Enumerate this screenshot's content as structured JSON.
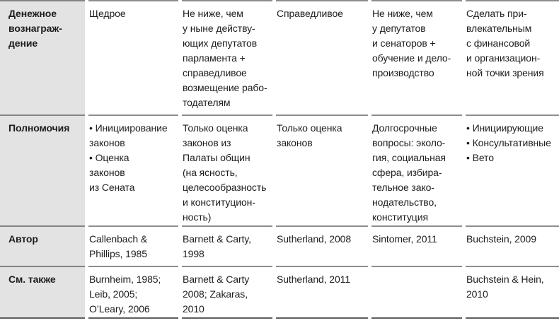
{
  "table": {
    "colors": {
      "header_column_bg": "#e3e3e3",
      "separator_line": "#8d8d8d",
      "bottom_line": "#5f5f5f",
      "text": "#1d1d1d"
    },
    "rows": [
      {
        "header": "Денежное\nвознаграж-\nдение",
        "cells": [
          "Щедрое",
          "Не ниже, чем\nу ныне действу-\nющих депутатов\nпарламента +\nсправедливое\nвозмещение рабо-\nтодателям",
          "Справедливое",
          "Не ниже, чем\nу депутатов\nи сенаторов +\nобучение и дело-\nпроизводство",
          "Сделать при-\nвлекательным\nс финансовой\nи организацион-\nной точки зрения"
        ]
      },
      {
        "header": "Полномочия",
        "cells": [
          "• Инициирование\nзаконов\n• Оценка\nзаконов\nиз Сената",
          "Только оценка\nзаконов из\nПалаты общин\n(на ясность,\nцелесообразность\nи конституцион-\nность)",
          "Только оценка\nзаконов",
          "Долгосрочные\nвопросы: эколо-\nгия, социальная\nсфера, избира-\nтельное зако-\nнодательство,\nконституция",
          "• Инициирующие\n• Консультативные\n• Вето"
        ]
      },
      {
        "header": "Автор",
        "cells": [
          "Callenbach &\nPhillips, 1985",
          "Barnett & Carty,\n1998",
          "Sutherland, 2008",
          "Sintomer, 2011",
          "Buchstein, 2009"
        ]
      },
      {
        "header": "См. также",
        "cells": [
          "Burnheim, 1985;\nLeib, 2005;\nO’Leary, 2006",
          "Barnett & Carty\n2008; Zakaras,\n2010",
          "Sutherland, 2011",
          "",
          "Buchstein & Hein,\n2010"
        ]
      }
    ]
  }
}
